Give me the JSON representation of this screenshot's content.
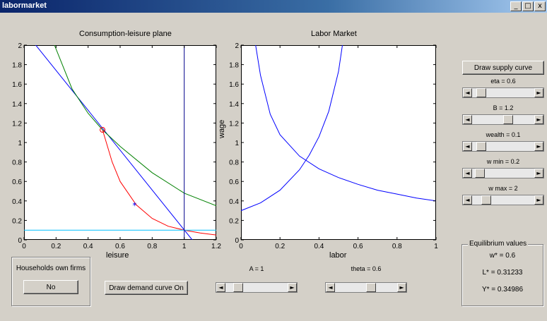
{
  "window": {
    "title": "labormarket",
    "buttons": [
      "_",
      "□",
      "x"
    ]
  },
  "plots": {
    "left": {
      "title": "Consumption-leisure plane",
      "xlabel": "leisure",
      "xticks": [
        "0",
        "0.2",
        "0.4",
        "0.6",
        "0.8",
        "1",
        "1.2"
      ],
      "yticks": [
        "0",
        "0.2",
        "0.4",
        "0.6",
        "0.8",
        "1",
        "1.2",
        "1.4",
        "1.6",
        "1.8",
        "2"
      ]
    },
    "right": {
      "title": "Labor Market",
      "xlabel": "labor",
      "ylabel": "wage",
      "xticks": [
        "0",
        "0.2",
        "0.4",
        "0.6",
        "0.8",
        "1"
      ],
      "yticks": [
        "0",
        "0.2",
        "0.4",
        "0.6",
        "0.8",
        "1",
        "1.2",
        "1.4",
        "1.6",
        "1.8",
        "2"
      ]
    }
  },
  "chart_data": [
    {
      "type": "line",
      "title": "Consumption-leisure plane",
      "xlabel": "leisure",
      "ylabel": "",
      "xlim": [
        0,
        1.2
      ],
      "ylim": [
        0,
        2
      ],
      "series": [
        {
          "color": "#0000ff",
          "x": [
            0.0,
            1.05
          ],
          "y": [
            2.15,
            0.0
          ]
        },
        {
          "color": "#008000",
          "x": [
            0.19,
            0.3,
            0.4,
            0.49,
            0.6,
            0.8,
            1.0,
            1.2
          ],
          "y": [
            2.0,
            1.55,
            1.3,
            1.13,
            0.96,
            0.69,
            0.48,
            0.35
          ]
        },
        {
          "color": "#ff0000",
          "x": [
            0.49,
            0.55,
            0.6,
            0.7,
            0.8,
            0.9,
            1.0,
            1.1,
            1.2
          ],
          "y": [
            1.13,
            0.8,
            0.6,
            0.36,
            0.22,
            0.14,
            0.1,
            0.07,
            0.05
          ]
        },
        {
          "color": "#00bfff",
          "x": [
            0.0,
            1.2
          ],
          "y": [
            0.1,
            0.1
          ]
        },
        {
          "color": "#00008b",
          "x": [
            1.0,
            1.0
          ],
          "y": [
            0.0,
            2.0
          ]
        }
      ],
      "markers": [
        {
          "shape": "circle",
          "color": "#ff0000",
          "x": 0.49,
          "y": 1.13
        },
        {
          "shape": "star",
          "color": "#0000ff",
          "x": 0.69,
          "y": 0.35
        }
      ]
    },
    {
      "type": "line",
      "title": "Labor Market",
      "xlabel": "labor",
      "ylabel": "wage",
      "xlim": [
        0,
        1
      ],
      "ylim": [
        0,
        2
      ],
      "series": [
        {
          "color": "#0000ff",
          "x": [
            0.075,
            0.1,
            0.15,
            0.2,
            0.3,
            0.4,
            0.5,
            0.6,
            0.7,
            0.8,
            0.9,
            1.0
          ],
          "y": [
            2.0,
            1.69,
            1.29,
            1.08,
            0.86,
            0.73,
            0.64,
            0.57,
            0.51,
            0.47,
            0.43,
            0.4
          ]
        },
        {
          "color": "#0000ff",
          "x": [
            0.0,
            0.1,
            0.2,
            0.3,
            0.35,
            0.4,
            0.45,
            0.5,
            0.52
          ],
          "y": [
            0.3,
            0.38,
            0.51,
            0.72,
            0.87,
            1.06,
            1.32,
            1.73,
            2.0
          ]
        }
      ]
    }
  ],
  "controls": {
    "draw_supply": "Draw supply curve",
    "sliders": [
      {
        "label": "eta = 0.6",
        "value": 0.08
      },
      {
        "label": "B = 1.2",
        "value": 0.6
      },
      {
        "label": "wealth = 0.1",
        "value": 0.08
      },
      {
        "label": "w min = 0.2",
        "value": 0.05
      },
      {
        "label": "w max = 2",
        "value": 0.18
      }
    ],
    "households_title": "Households own firms",
    "households_button": "No",
    "draw_demand": "Draw demand curve On",
    "a_label": "A = 1",
    "a_value": 0.15,
    "theta_label": "theta = 0.6",
    "theta_value": 0.6
  },
  "equilibrium": {
    "title": "Equilibrium values",
    "w": "w* = 0.6",
    "l": "L* = 0.31233",
    "y": "Y* = 0.34986"
  }
}
